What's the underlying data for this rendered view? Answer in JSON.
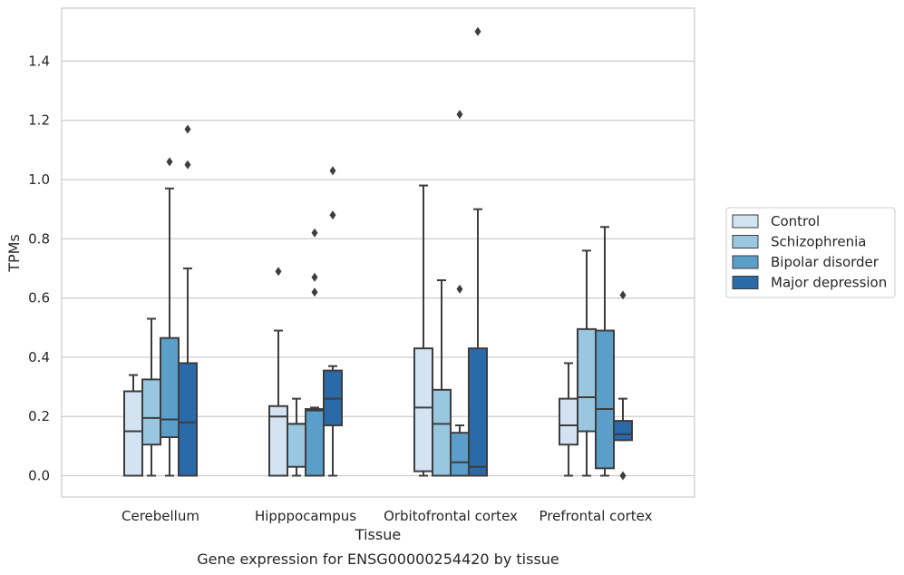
{
  "chart_data": {
    "type": "boxplot",
    "xlabel": "Tissue",
    "ylabel": "TPMs",
    "caption": "Gene expression for ENSG00000254420 by tissue",
    "categories": [
      "Cerebellum",
      "Hipppocampus",
      "Orbitofrontal cortex",
      "Prefrontal cortex"
    ],
    "ylim": [
      -0.07,
      1.58
    ],
    "yticks": [
      0.0,
      0.2,
      0.4,
      0.6,
      0.8,
      1.0,
      1.2,
      1.4
    ],
    "ytick_labels": [
      "0.0",
      "0.2",
      "0.4",
      "0.6",
      "0.8",
      "1.0",
      "1.2",
      "1.4"
    ],
    "grid": "horizontal",
    "legend_position": "right",
    "series": [
      {
        "name": "Control",
        "color": "#d3e3f2",
        "boxes": [
          {
            "whislo": 0.0,
            "q1": 0.0,
            "med": 0.15,
            "q3": 0.285,
            "whishi": 0.34,
            "fliers": []
          },
          {
            "whislo": 0.0,
            "q1": 0.0,
            "med": 0.2,
            "q3": 0.235,
            "whishi": 0.49,
            "fliers": [
              0.69
            ]
          },
          {
            "whislo": 0.0,
            "q1": 0.015,
            "med": 0.23,
            "q3": 0.43,
            "whishi": 0.98,
            "fliers": []
          },
          {
            "whislo": 0.0,
            "q1": 0.105,
            "med": 0.17,
            "q3": 0.26,
            "whishi": 0.38,
            "fliers": []
          }
        ]
      },
      {
        "name": "Schizophrenia",
        "color": "#9ac7e0",
        "boxes": [
          {
            "whislo": 0.0,
            "q1": 0.105,
            "med": 0.195,
            "q3": 0.325,
            "whishi": 0.53,
            "fliers": []
          },
          {
            "whislo": 0.0,
            "q1": 0.03,
            "med": 0.175,
            "q3": 0.175,
            "whishi": 0.26,
            "fliers": []
          },
          {
            "whislo": 0.0,
            "q1": 0.0,
            "med": 0.175,
            "q3": 0.29,
            "whishi": 0.66,
            "fliers": []
          },
          {
            "whislo": 0.0,
            "q1": 0.15,
            "med": 0.265,
            "q3": 0.495,
            "whishi": 0.76,
            "fliers": []
          }
        ]
      },
      {
        "name": "Bipolar disorder",
        "color": "#5b9ec9",
        "boxes": [
          {
            "whislo": 0.0,
            "q1": 0.13,
            "med": 0.19,
            "q3": 0.465,
            "whishi": 0.97,
            "fliers": [
              1.06
            ]
          },
          {
            "whislo": 0.0,
            "q1": 0.0,
            "med": 0.22,
            "q3": 0.225,
            "whishi": 0.23,
            "fliers": [
              0.62,
              0.67,
              0.82
            ]
          },
          {
            "whislo": 0.0,
            "q1": 0.0,
            "med": 0.045,
            "q3": 0.145,
            "whishi": 0.17,
            "fliers": [
              0.63,
              1.22
            ]
          },
          {
            "whislo": 0.0,
            "q1": 0.025,
            "med": 0.225,
            "q3": 0.49,
            "whishi": 0.84,
            "fliers": []
          }
        ]
      },
      {
        "name": "Major depression",
        "color": "#2a6aa9",
        "boxes": [
          {
            "whislo": 0.0,
            "q1": 0.0,
            "med": 0.18,
            "q3": 0.38,
            "whishi": 0.7,
            "fliers": [
              1.05,
              1.17
            ]
          },
          {
            "whislo": 0.0,
            "q1": 0.17,
            "med": 0.26,
            "q3": 0.355,
            "whishi": 0.37,
            "fliers": [
              0.88,
              1.03
            ]
          },
          {
            "whislo": 0.0,
            "q1": 0.0,
            "med": 0.03,
            "q3": 0.43,
            "whishi": 0.9,
            "fliers": [
              1.5
            ]
          },
          {
            "whislo": 0.12,
            "q1": 0.12,
            "med": 0.14,
            "q3": 0.185,
            "whishi": 0.26,
            "fliers": [
              0.0,
              0.61
            ]
          }
        ]
      }
    ]
  }
}
